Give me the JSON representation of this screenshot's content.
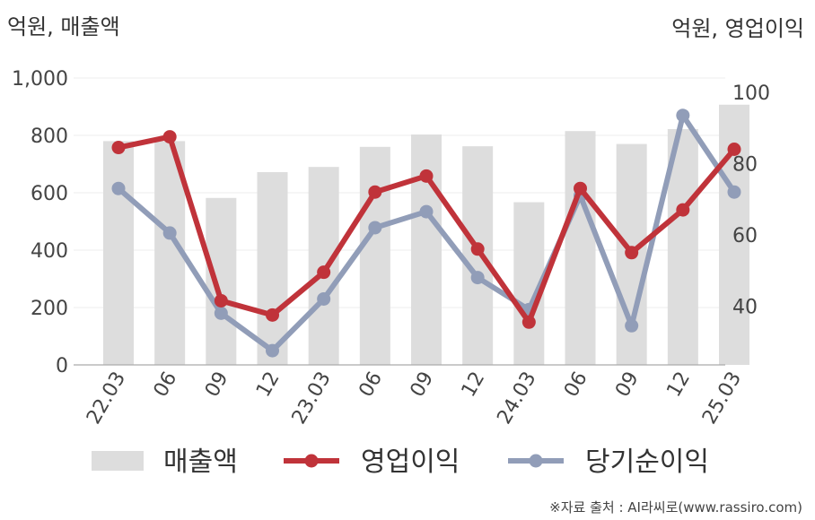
{
  "chart_data": {
    "type": "bar+line",
    "categories": [
      "22.03",
      "06",
      "09",
      "12",
      "23.03",
      "06",
      "09",
      "12",
      "24.03",
      "06",
      "09",
      "12",
      "25.03"
    ],
    "left_axis": {
      "label": "억원, 매출액",
      "range": [
        0,
        1000
      ],
      "ticks": [
        0,
        200,
        400,
        600,
        800,
        1000
      ],
      "tick_labels": [
        "0",
        "200",
        "400",
        "600",
        "800",
        "1,000"
      ]
    },
    "right_axis": {
      "label": "억원, 영업이익",
      "range": [
        23.5,
        104
      ],
      "ticks": [
        40,
        60,
        80,
        100
      ],
      "tick_labels": [
        "40",
        "60",
        "80",
        "100"
      ]
    },
    "series": [
      {
        "name": "매출액",
        "kind": "bar",
        "axis": "left",
        "color": "#dddddd",
        "values": [
          780,
          780,
          582,
          672,
          690,
          760,
          803,
          762,
          567,
          815,
          770,
          822,
          907
        ]
      },
      {
        "name": "영업이익",
        "kind": "line",
        "axis": "right",
        "color": "#c0333a",
        "values": [
          84.5,
          87.5,
          41.5,
          37.5,
          49.5,
          72,
          76.5,
          56,
          35.5,
          73,
          55,
          67,
          84
        ]
      },
      {
        "name": "당기순이익",
        "kind": "line",
        "axis": "right",
        "color": "#919db8",
        "values": [
          73,
          60.5,
          38,
          27.5,
          42,
          62,
          66.5,
          48,
          39,
          71,
          34.5,
          93.5,
          72
        ]
      }
    ],
    "grid": true,
    "legend_position": "bottom",
    "source_text": "※자료 출처 : AI라씨로(www.rassiro.com)"
  }
}
